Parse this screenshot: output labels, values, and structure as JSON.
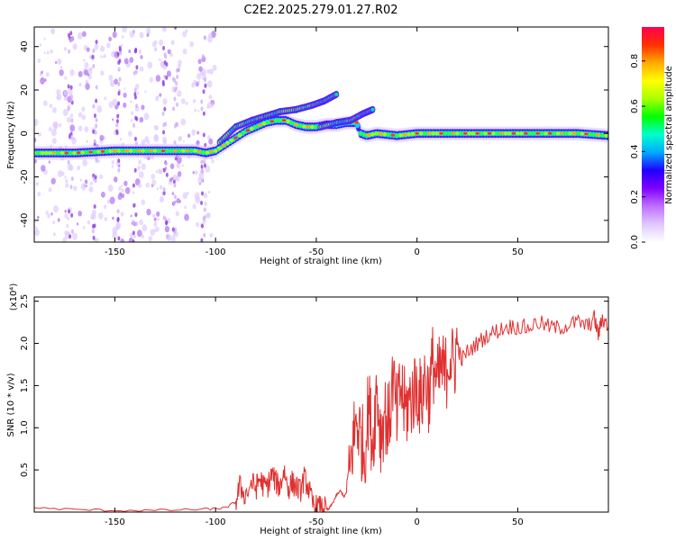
{
  "chart_data": [
    {
      "type": "heatmap",
      "title": "C2E2.2025.279.01.27.R02",
      "xlabel": "Height of straight line (km)",
      "ylabel": "Frequency (Hz)",
      "xlim": [
        -190,
        95
      ],
      "ylim": [
        -50,
        49
      ],
      "xticks": [
        -150,
        -100,
        -50,
        0,
        50
      ],
      "yticks": [
        -40,
        -20,
        0,
        20,
        40
      ],
      "xtick_labels": [
        "-150",
        "-100",
        "-50",
        "0",
        "50"
      ],
      "ytick_labels": [
        "-40",
        "-20",
        "0",
        "20",
        "40"
      ],
      "colorbar": {
        "label": "Normalized spectral amplitude",
        "range": [
          0,
          0.95
        ],
        "ticks": [
          0,
          0.2,
          0.4,
          0.6,
          0.8
        ],
        "tick_labels": [
          "0.0",
          "0.2",
          "0.4",
          "0.6",
          "0.8"
        ],
        "colors": [
          "#ffffff",
          "#e0c8ff",
          "#c070ff",
          "#8000ff",
          "#2000ff",
          "#00aaff",
          "#00ffcc",
          "#00ff00",
          "#aaff00",
          "#ffff00",
          "#ffaa00",
          "#ff3000",
          "#ff0050"
        ]
      },
      "ridge": {
        "description_points_x": [
          -190,
          -170,
          -150,
          -130,
          -115,
          -110,
          -105,
          -100,
          -95,
          -90,
          -85,
          -80,
          -75,
          -70,
          -65,
          -60,
          -55,
          -50,
          -45,
          -40,
          -35,
          -30,
          -28,
          -25,
          -20,
          -10,
          0,
          20,
          40,
          60,
          80,
          95
        ],
        "description_points_y": [
          -9,
          -9,
          -8,
          -8,
          -8,
          -8,
          -9,
          -8,
          -5,
          -2,
          1,
          3,
          5,
          6,
          6,
          4,
          3,
          3,
          4,
          4,
          5,
          5,
          0,
          -1,
          0,
          -1,
          0,
          0,
          0,
          0,
          0,
          -1
        ],
        "upper_streak_x": [
          -98,
          -90,
          -82,
          -75,
          -68,
          -60,
          -52,
          -46,
          -40
        ],
        "upper_streak_y": [
          -4,
          3,
          6,
          8,
          10,
          11,
          13,
          15,
          18
        ],
        "right_streak_x": [
          -48,
          -40,
          -33,
          -27,
          -22
        ],
        "right_streak_y": [
          3,
          5,
          6,
          9,
          11
        ]
      }
    },
    {
      "type": "line",
      "xlabel": "Height of straight line (km)",
      "ylabel": "SNR (10 * v/v)",
      "yscale_note": "(x10⁴)",
      "xlim": [
        -190,
        95
      ],
      "ylim": [
        0,
        2.55
      ],
      "xticks": [
        -150,
        -100,
        -50,
        0,
        50
      ],
      "yticks": [
        0.5,
        1.0,
        1.5,
        2.0,
        2.5
      ],
      "xtick_labels": [
        "-150",
        "-100",
        "-50",
        "0",
        "50"
      ],
      "ytick_labels": [
        "0.5",
        "1.0",
        "1.5",
        "2.0",
        "2.5"
      ],
      "color": "#e03030",
      "x": [
        -190,
        -170,
        -150,
        -130,
        -110,
        -100,
        -95,
        -90,
        -88,
        -85,
        -82,
        -80,
        -78,
        -76,
        -74,
        -72,
        -70,
        -68,
        -66,
        -64,
        -62,
        -60,
        -58,
        -56,
        -54,
        -52,
        -50,
        -48,
        -46,
        -44,
        -42,
        -40,
        -38,
        -36,
        -34,
        -32,
        -30,
        -28,
        -26,
        -24,
        -22,
        -20,
        -18,
        -16,
        -14,
        -12,
        -10,
        -8,
        -6,
        -4,
        -2,
        0,
        2,
        4,
        6,
        8,
        10,
        12,
        14,
        16,
        18,
        20,
        22,
        25,
        30,
        35,
        40,
        45,
        50,
        55,
        60,
        65,
        70,
        75,
        80,
        85,
        88,
        90,
        92,
        95
      ],
      "y": [
        0.05,
        0.03,
        0.02,
        0.02,
        0.03,
        0.04,
        0.05,
        0.12,
        0.3,
        0.2,
        0.35,
        0.28,
        0.4,
        0.3,
        0.32,
        0.45,
        0.35,
        0.3,
        0.5,
        0.28,
        0.35,
        0.3,
        0.25,
        0.4,
        0.3,
        0.1,
        0.06,
        0.05,
        0.04,
        0.03,
        0.1,
        0.2,
        0.25,
        0.18,
        0.3,
        0.8,
        1.1,
        0.9,
        0.7,
        1.3,
        0.8,
        1.5,
        0.9,
        1.2,
        1.0,
        1.6,
        1.1,
        1.5,
        1.2,
        1.3,
        1.4,
        1.5,
        1.3,
        1.6,
        1.4,
        1.8,
        1.5,
        1.7,
        1.6,
        1.9,
        1.7,
        2.0,
        1.8,
        1.9,
        2.0,
        2.1,
        2.15,
        2.2,
        2.2,
        2.18,
        2.25,
        2.2,
        2.18,
        2.22,
        2.25,
        2.2,
        2.3,
        2.1,
        2.3,
        2.2
      ]
    }
  ]
}
